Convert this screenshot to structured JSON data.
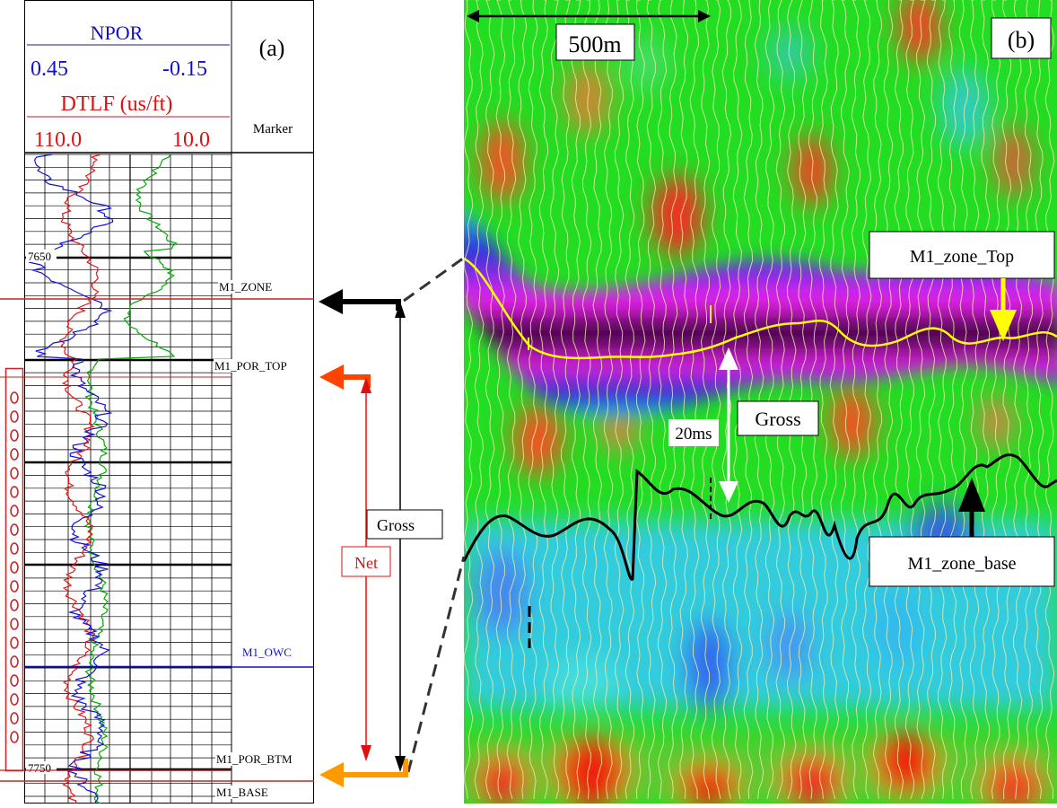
{
  "panel_a": {
    "label": "(a)",
    "npor": {
      "name": "NPOR",
      "left_value": "0.45",
      "right_value": "-0.15",
      "color": "#1010cc"
    },
    "dtlf": {
      "name": "DTLF (us/ft)",
      "left_value": "110.0",
      "right_value": "10.0",
      "color": "#dd1111"
    },
    "marker_header": "Marker",
    "depths": [
      "7650",
      "7750"
    ],
    "markers": [
      "M1_ZONE",
      "M1_POR_TOP",
      "M1_OWC",
      "M1_POR_BTM",
      "M1_BASE"
    ],
    "gross_label": "Gross",
    "net_label": "Net"
  },
  "panel_b": {
    "label": "(b)",
    "scale_label": "500m",
    "top_label": "M1_zone_Top",
    "base_label": "M1_zone_base",
    "gross_label": "Gross",
    "time_label": "20ms"
  },
  "colors": {
    "net": "#e01010",
    "gross": "#000000",
    "arrow_top": "#ff4400",
    "arrow_bottom": "#ff9900",
    "horizon_top": "#ffff00",
    "horizon_base": "#000000"
  }
}
